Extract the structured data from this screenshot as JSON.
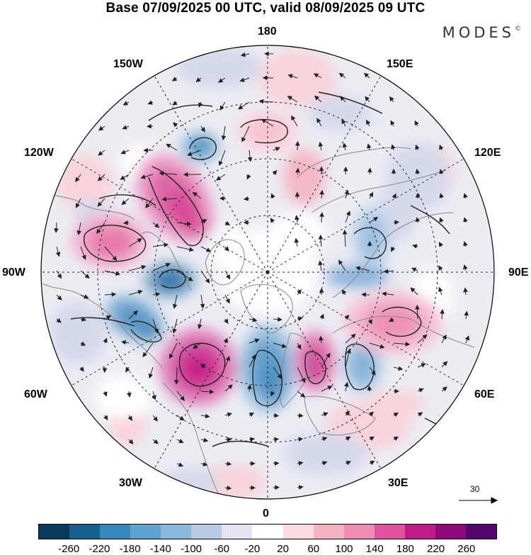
{
  "title": "Base 07/09/2025 00 UTC, valid 08/09/2025 09 UTC",
  "brand": {
    "name": "MODES",
    "mark": "©"
  },
  "longitude_labels": {
    "lon_180": "180",
    "lon_150w": "150W",
    "lon_150e": "150E",
    "lon_120w": "120W",
    "lon_120e": "120E",
    "lon_90w": "90W",
    "lon_90e": "90E",
    "lon_60w": "60W",
    "lon_60e": "60E",
    "lon_30w": "30W",
    "lon_30e": "30E",
    "lon_0": "0"
  },
  "reference_vector": {
    "label": "30"
  },
  "colorbar": {
    "colors": [
      "#0b3a5c",
      "#15608f",
      "#3587bd",
      "#5fa3cf",
      "#8bb8db",
      "#b9cae5",
      "#e4e5f2",
      "#ffffff",
      "#fbdbdf",
      "#f6b3c2",
      "#f08cb3",
      "#e2539e",
      "#c41c86",
      "#8e0a79",
      "#52066e"
    ],
    "ticks": [
      "-260",
      "-220",
      "-180",
      "-140",
      "-100",
      "-60",
      "-20",
      "20",
      "60",
      "100",
      "140",
      "180",
      "220",
      "260"
    ]
  },
  "anomalies": [
    {
      "name": "cyclone-150w",
      "value": -180,
      "color": "#4f95c6"
    },
    {
      "name": "ridge-120w",
      "value": 180,
      "color": "#d84b98"
    },
    {
      "name": "ridge-105w",
      "value": 140,
      "color": "#e87aab"
    },
    {
      "name": "cyclone-hudson",
      "value": -220,
      "color": "#2b6fa8"
    },
    {
      "name": "cyclone-labrador",
      "value": -180,
      "color": "#3f86bd"
    },
    {
      "name": "ridge-atlantic",
      "value": 220,
      "color": "#c61d86"
    },
    {
      "name": "cyclone-greenland-sea",
      "value": -180,
      "color": "#4a8fc4"
    },
    {
      "name": "ridge-scandinavia",
      "value": 180,
      "color": "#d13e94"
    },
    {
      "name": "cyclone-europe",
      "value": -140,
      "color": "#6fa6d2"
    },
    {
      "name": "ridge-siberia",
      "value": 140,
      "color": "#ec8fb4"
    },
    {
      "name": "ridge-chukchi",
      "value": 100,
      "color": "#f4b8c6"
    },
    {
      "name": "cyclone-kara",
      "value": -100,
      "color": "#8eb4dc"
    }
  ]
}
